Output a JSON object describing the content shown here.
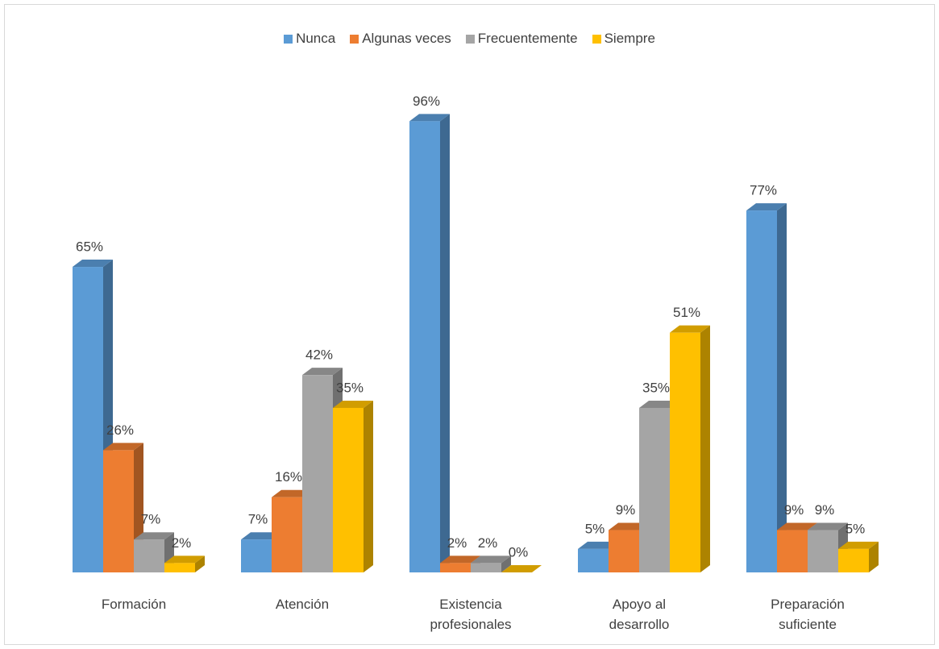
{
  "chart_data": {
    "type": "bar3d",
    "categories": [
      "Formación",
      "Atención",
      "Existencia profesionales",
      "Apoyo al desarrollo",
      "Preparación suficiente"
    ],
    "series": [
      {
        "name": "Nunca",
        "color": "#5b9bd5",
        "values": [
          65,
          7,
          96,
          5,
          77
        ],
        "value_labels": [
          "65%",
          "7%",
          "96%",
          "5%",
          "77%"
        ]
      },
      {
        "name": "Algunas veces",
        "color": "#ed7d31",
        "values": [
          26,
          16,
          2,
          9,
          9
        ],
        "value_labels": [
          "26%",
          "16%",
          "2%",
          "9%",
          "9%"
        ]
      },
      {
        "name": "Frecuentemente",
        "color": "#a5a5a5",
        "values": [
          7,
          42,
          2,
          35,
          9
        ],
        "value_labels": [
          "7%",
          "42%",
          "2%",
          "35%",
          "9%"
        ]
      },
      {
        "name": "Siempre",
        "color": "#ffc000",
        "values": [
          2,
          35,
          0,
          51,
          5
        ],
        "value_labels": [
          "2%",
          "35%",
          "0%",
          "51%",
          "5%"
        ]
      }
    ],
    "ylim": [
      0,
      100
    ],
    "legend": "top"
  }
}
